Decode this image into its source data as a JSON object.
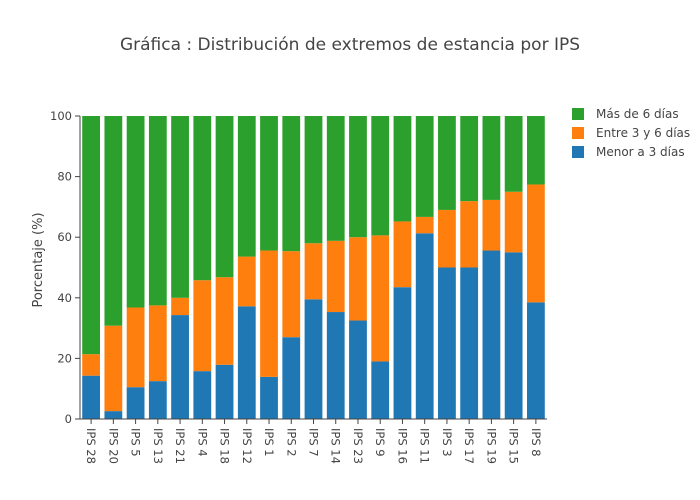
{
  "chart_data": {
    "type": "bar",
    "stacked": true,
    "title": "Gráfica : Distribución de extremos de estancia por IPS",
    "xlabel": "",
    "ylabel": "Porcentaje (%)",
    "ylim": [
      0,
      100
    ],
    "yticks": [
      0,
      20,
      40,
      60,
      80,
      100
    ],
    "grid": false,
    "legend_position": "top-right",
    "categories": [
      "IPS 28",
      "IPS 20",
      "IPS 5",
      "IPS 13",
      "IPS 21",
      "IPS 4",
      "IPS 18",
      "IPS 12",
      "IPS 1",
      "IPS 2",
      "IPS 7",
      "IPS 14",
      "IPS 23",
      "IPS 9",
      "IPS 16",
      "IPS 11",
      "IPS 3",
      "IPS 17",
      "IPS 19",
      "IPS 15",
      "IPS 8"
    ],
    "series": [
      {
        "name": "Menor a 3 días",
        "color": "#1f77b4",
        "values": [
          14.3,
          2.6,
          10.5,
          12.5,
          34.3,
          15.8,
          17.9,
          37.2,
          13.9,
          27.0,
          39.5,
          35.3,
          32.5,
          19.0,
          43.5,
          61.3,
          50.0,
          50.0,
          55.6,
          55.0,
          38.5
        ]
      },
      {
        "name": "Entre 3 y 6 días",
        "color": "#ff7f0e",
        "values": [
          7.1,
          28.2,
          26.3,
          25.0,
          5.7,
          30.0,
          28.9,
          16.4,
          41.7,
          28.4,
          18.5,
          23.5,
          27.5,
          41.6,
          21.7,
          5.4,
          19.0,
          21.9,
          16.7,
          20.0,
          38.9
        ]
      },
      {
        "name": "Más de 6 días",
        "color": "#2ca02c",
        "values": [
          78.6,
          69.2,
          63.2,
          62.5,
          60.0,
          54.2,
          53.2,
          46.4,
          44.4,
          44.6,
          42.0,
          41.2,
          40.0,
          39.4,
          34.8,
          33.3,
          31.0,
          28.1,
          27.7,
          25.0,
          22.6
        ]
      }
    ],
    "legend_order": [
      "Más de 6 días",
      "Entre 3 y 6 días",
      "Menor a 3 días"
    ]
  }
}
